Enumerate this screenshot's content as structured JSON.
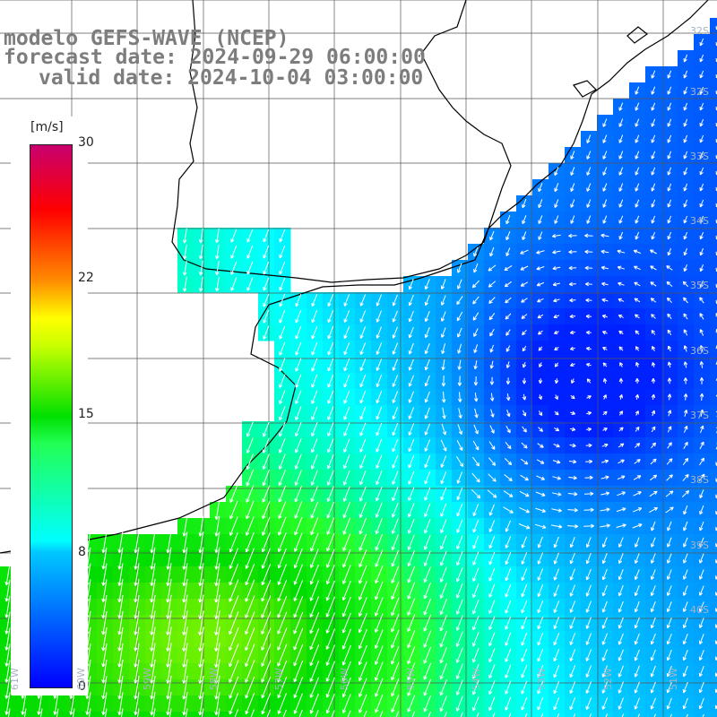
{
  "title": {
    "model": "modelo GEFS-WAVE (NCEP)",
    "forecast": "forecast date: 2024-09-29 06:00:00",
    "valid": "valid date: 2024-10-04 03:00:00"
  },
  "colorbar": {
    "unit": "[m/s]",
    "ticks": [
      {
        "label": "30",
        "value": 30
      },
      {
        "label": "22",
        "value": 22
      },
      {
        "label": "15",
        "value": 15
      },
      {
        "label": "8",
        "value": 8
      },
      {
        "label": "0",
        "value": 0
      }
    ],
    "range": [
      0,
      30
    ],
    "colors": [
      "#0000ff",
      "#00c8ff",
      "#00ffff",
      "#00e000",
      "#ffff00",
      "#ff0000",
      "#c8006e"
    ]
  },
  "grid_labels": {
    "lat": [
      "32S",
      "33S",
      "34S",
      "35S",
      "36S",
      "37S",
      "38S",
      "39S",
      "40S"
    ],
    "lon": [
      "61W",
      "60W",
      "59W",
      "58W",
      "57W",
      "56W",
      "55W",
      "54W",
      "53W",
      "52W",
      "51W"
    ]
  },
  "colors": {
    "title": "#7d7d7d",
    "grid": "#555555",
    "coast": "#000000",
    "arrow": "#ffffff",
    "land": "#ffffff"
  }
}
